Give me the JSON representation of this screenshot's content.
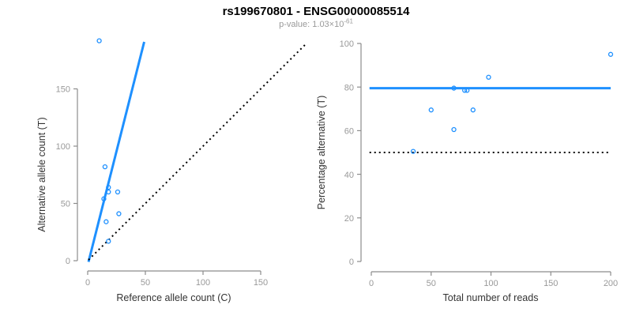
{
  "header": {
    "title": "rs199670801 - ENSG00000085514",
    "subtitle_prefix": "p-value: 1.03×10",
    "subtitle_exponent": "-61"
  },
  "colors": {
    "accent_blue": "#1e90ff",
    "axis_gray": "#8c8c8c",
    "tick_gray": "#999999",
    "label_dark": "#333333",
    "dotted_black": "#000000"
  },
  "chart_data": [
    {
      "type": "scatter",
      "panel": "left",
      "xlabel": "Reference allele count (C)",
      "ylabel": "Alternative allele count (T)",
      "xlim": [
        0,
        150
      ],
      "ylim": [
        0,
        192
      ],
      "xticks": [
        0,
        50,
        100,
        150
      ],
      "yticks": [
        0,
        50,
        100,
        150
      ],
      "grid": false,
      "points": [
        [
          10,
          192
        ],
        [
          15,
          82
        ],
        [
          18,
          64
        ],
        [
          18,
          60
        ],
        [
          14,
          54
        ],
        [
          26,
          60
        ],
        [
          27,
          41
        ],
        [
          16,
          34
        ],
        [
          18,
          17
        ]
      ],
      "lines": [
        {
          "name": "fitted-ratio-line",
          "style": "solid",
          "color": "#1e90ff",
          "width": 3,
          "x1": 0.7,
          "y1": -1,
          "x2": 49,
          "y2": 191
        },
        {
          "name": "identity-line",
          "style": "dotted",
          "color": "#000000",
          "width": 2,
          "x1": 0.7,
          "y1": 0.7,
          "x2": 189,
          "y2": 189
        }
      ]
    },
    {
      "type": "scatter",
      "panel": "right",
      "xlabel": "Total number of reads",
      "ylabel": "Percentage alternative (T)",
      "xlim": [
        0,
        200
      ],
      "ylim": [
        0,
        100
      ],
      "xticks": [
        0,
        50,
        100,
        150,
        200
      ],
      "yticks": [
        0,
        20,
        40,
        60,
        80,
        100
      ],
      "grid": false,
      "points": [
        [
          200,
          95
        ],
        [
          98,
          84.5
        ],
        [
          69,
          79.5
        ],
        [
          78,
          78.5
        ],
        [
          80,
          78.5
        ],
        [
          50,
          69.5
        ],
        [
          85,
          69.5
        ],
        [
          69,
          60.5
        ],
        [
          35,
          50.5
        ]
      ],
      "lines": [
        {
          "name": "estimated-percentage-line",
          "style": "solid",
          "color": "#1e90ff",
          "width": 3,
          "x1": -1.5,
          "y1": 79.5,
          "x2": 200,
          "y2": 79.5
        },
        {
          "name": "fifty-percent-line",
          "style": "dotted",
          "color": "#000000",
          "width": 2,
          "x1": -1.5,
          "y1": 50,
          "x2": 200,
          "y2": 50
        }
      ]
    }
  ]
}
